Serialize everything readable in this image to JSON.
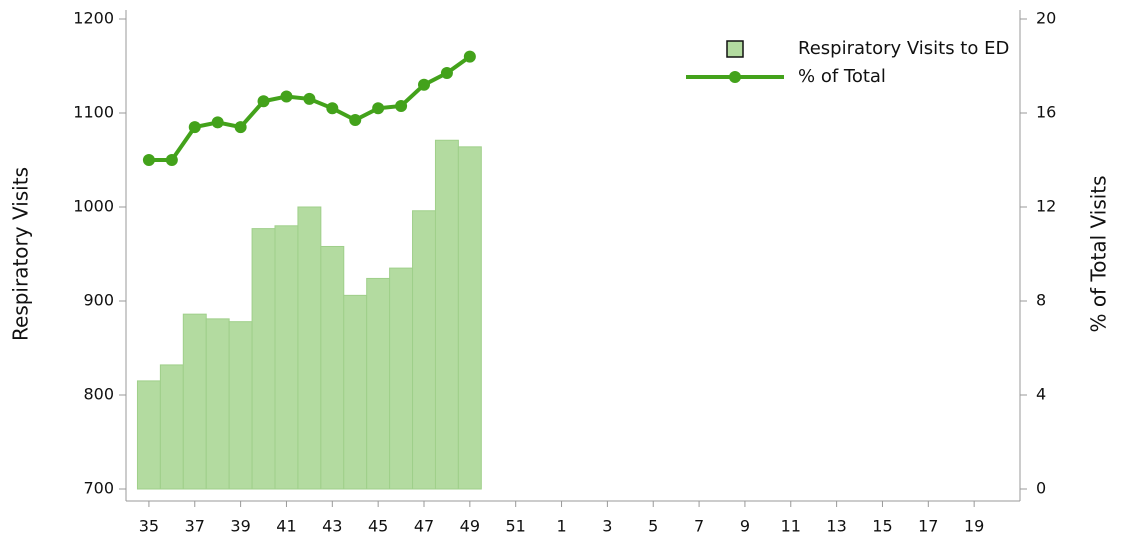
{
  "chart_data": {
    "type": "bar",
    "categories": [
      "35",
      null,
      "37",
      null,
      "39",
      null,
      "41",
      null,
      "43",
      null,
      "45",
      null,
      "47",
      null,
      "49",
      null,
      "51",
      null,
      "1",
      null,
      "3",
      null,
      "5",
      null,
      "7",
      null,
      "9",
      null,
      "11",
      null,
      "13",
      null,
      "15",
      null,
      "17",
      null,
      "19",
      null
    ],
    "series": [
      {
        "name": "Respiratory Visits to ED",
        "type": "bar",
        "color": "#b3dba0",
        "values": [
          815,
          832,
          886,
          881,
          878,
          977,
          980,
          1000,
          958,
          906,
          924,
          935,
          996,
          1071,
          1064,
          null,
          null,
          null,
          null,
          null,
          null,
          null,
          null,
          null,
          null,
          null,
          null,
          null,
          null,
          null,
          null,
          null,
          null,
          null,
          null,
          null,
          null,
          null
        ]
      },
      {
        "name": "% of Total",
        "type": "line",
        "axis": "y2",
        "color": "#43a21b",
        "values": [
          14.0,
          14.0,
          15.4,
          15.6,
          15.4,
          16.5,
          16.7,
          16.6,
          16.2,
          15.7,
          16.2,
          16.3,
          17.2,
          17.7,
          18.4,
          null,
          null,
          null,
          null,
          null,
          null,
          null,
          null,
          null,
          null,
          null,
          null,
          null,
          null,
          null,
          null,
          null,
          null,
          null,
          null,
          null,
          null,
          null
        ]
      }
    ],
    "ylabel": "Respiratory Visits",
    "y2label": "% of Total Visits",
    "ylim": [
      700,
      1200
    ],
    "yticks": [
      700,
      800,
      900,
      1000,
      1100,
      1200
    ],
    "y2lim": [
      0,
      20
    ],
    "y2ticks": [
      0,
      4,
      8,
      12,
      16,
      20
    ],
    "legend": "upper right",
    "grid": false
  }
}
